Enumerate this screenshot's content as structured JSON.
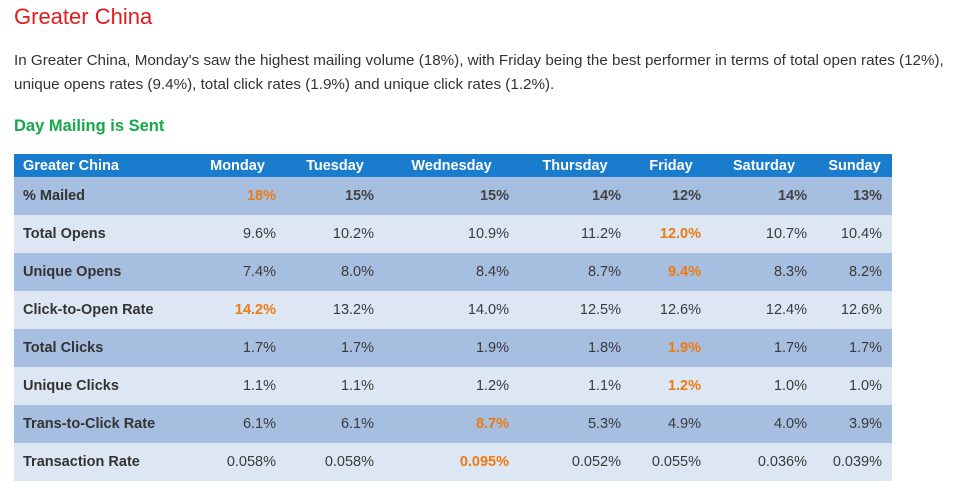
{
  "title": "Greater China",
  "intro": "In Greater China, Monday's saw the   highest mailing volume (18%), with Friday being the best performer in terms of total open rates (12%), unique opens rates (9.4%), total click rates (1.9%) and unique click rates (1.2%).",
  "subtitle": "Day Mailing is Sent",
  "colors": {
    "title": "#e31a1a",
    "subtitle": "#15a84b",
    "header_bg": "#1a7ccc",
    "band_bg": "#a6bedf",
    "plain_bg": "#dde6f3",
    "highlight": "#ee7a12"
  },
  "table": {
    "headers": [
      "Greater China",
      "Monday",
      "Tuesday",
      "Wednesday",
      "Thursday",
      "Friday",
      "Saturday",
      "Sunday"
    ],
    "rows": [
      {
        "label": "% Mailed",
        "values": [
          "18%",
          "15%",
          "15%",
          "14%",
          "12%",
          "14%",
          "13%"
        ]
      },
      {
        "label": "Total Opens",
        "values": [
          "9.6%",
          "10.2%",
          "10.9%",
          "11.2%",
          "12.0%",
          "10.7%",
          "10.4%"
        ]
      },
      {
        "label": "Unique Opens",
        "values": [
          "7.4%",
          "8.0%",
          "8.4%",
          "8.7%",
          "9.4%",
          "8.3%",
          "8.2%"
        ]
      },
      {
        "label": "Click-to-Open Rate",
        "values": [
          "14.2%",
          "13.2%",
          "14.0%",
          "12.5%",
          "12.6%",
          "12.4%",
          "12.6%"
        ]
      },
      {
        "label": "Total Clicks",
        "values": [
          "1.7%",
          "1.7%",
          "1.9%",
          "1.8%",
          "1.9%",
          "1.7%",
          "1.7%"
        ]
      },
      {
        "label": "Unique Clicks",
        "values": [
          "1.1%",
          "1.1%",
          "1.2%",
          "1.1%",
          "1.2%",
          "1.0%",
          "1.0%"
        ]
      },
      {
        "label": "Trans-to-Click Rate",
        "values": [
          "6.1%",
          "6.1%",
          "8.7%",
          "5.3%",
          "4.9%",
          "4.0%",
          "3.9%"
        ]
      },
      {
        "label": "Transaction Rate",
        "values": [
          "0.058%",
          "0.058%",
          "0.095%",
          "0.052%",
          "0.055%",
          "0.036%",
          "0.039%"
        ]
      }
    ]
  }
}
